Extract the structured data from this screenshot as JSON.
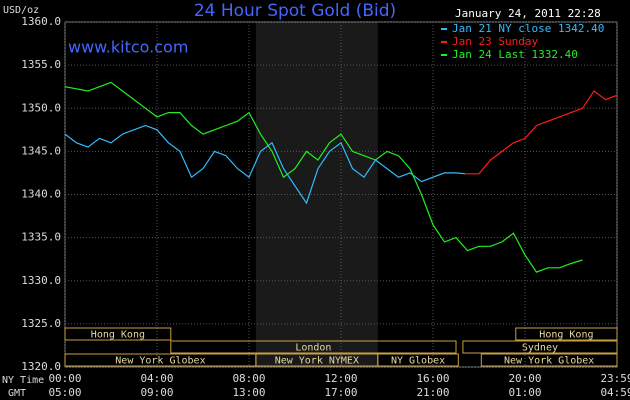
{
  "chart_data": {
    "type": "line",
    "title": "24 Hour Spot Gold (Bid)",
    "timestamp": "January 24, 2011 22:28",
    "watermark": "www.kitco.com",
    "y_label": "USD/oz",
    "x_row_labels": [
      "NY Time",
      "GMT"
    ],
    "xlim": [
      0,
      24
    ],
    "xticks": [
      {
        "value": 0,
        "label": "00:00"
      },
      {
        "value": 4,
        "label": "04:00"
      },
      {
        "value": 8,
        "label": "08:00"
      },
      {
        "value": 12,
        "label": "12:00"
      },
      {
        "value": 16,
        "label": "16:00"
      },
      {
        "value": 20,
        "label": "20:00"
      },
      {
        "value": 24,
        "label": "23:59"
      }
    ],
    "x2ticks": [
      {
        "value": 0,
        "label": "05:00"
      },
      {
        "value": 4,
        "label": "09:00"
      },
      {
        "value": 8,
        "label": "13:00"
      },
      {
        "value": 12,
        "label": "17:00"
      },
      {
        "value": 16,
        "label": "21:00"
      },
      {
        "value": 20,
        "label": "01:00"
      },
      {
        "value": 24,
        "label": "04:59"
      }
    ],
    "ylim": [
      1320,
      1360
    ],
    "yticks": [
      {
        "value": 1320,
        "label": "1320.0"
      },
      {
        "value": 1325,
        "label": "1325.0"
      },
      {
        "value": 1330,
        "label": "1330.0"
      },
      {
        "value": 1335,
        "label": "1335.0"
      },
      {
        "value": 1340,
        "label": "1340.0"
      },
      {
        "value": 1345,
        "label": "1345.0"
      },
      {
        "value": 1350,
        "label": "1350.0"
      },
      {
        "value": 1355,
        "label": "1355.0"
      },
      {
        "value": 1360,
        "label": "1360.0"
      }
    ],
    "grid": true,
    "sessions": [
      {
        "label": "Hong Kong",
        "start": 0,
        "end": 4.6,
        "row": 0
      },
      {
        "label": "Hong Kong",
        "start": 19.6,
        "end": 24,
        "row": 0
      },
      {
        "label": "London",
        "start": 4.6,
        "end": 17,
        "row": 1
      },
      {
        "label": "Sydney",
        "start": 17.3,
        "end": 24,
        "row": 1
      },
      {
        "label": "New York Globex",
        "start": 0,
        "end": 8.3,
        "row": 2
      },
      {
        "label": "New York NYMEX",
        "start": 8.3,
        "end": 13.6,
        "row": 2,
        "highlight": true
      },
      {
        "label": "NY Globex",
        "start": 13.6,
        "end": 17.1,
        "row": 2
      },
      {
        "label": "New York Globex",
        "start": 18.1,
        "end": 24,
        "row": 2
      }
    ],
    "series": [
      {
        "name": "Jan 21 NY close 1342.40",
        "color": "#33bbff",
        "x": [
          0,
          0.5,
          1,
          1.5,
          2,
          2.5,
          3,
          3.5,
          4,
          4.5,
          5,
          5.5,
          6,
          6.5,
          7,
          7.5,
          8,
          8.5,
          9,
          9.5,
          10,
          10.5,
          11,
          11.5,
          12,
          12.5,
          13,
          13.5,
          14,
          14.5,
          15,
          15.5,
          16,
          16.5,
          17,
          17.4
        ],
        "values": [
          1347,
          1346,
          1345.5,
          1346.5,
          1346,
          1347,
          1347.5,
          1348,
          1347.5,
          1346,
          1345,
          1342,
          1343,
          1345,
          1344.5,
          1343,
          1342,
          1345,
          1346,
          1343,
          1341,
          1339,
          1343,
          1345,
          1346,
          1343,
          1342,
          1344,
          1343,
          1342,
          1342.5,
          1341.5,
          1342,
          1342.5,
          1342.5,
          1342.4
        ]
      },
      {
        "name": "Jan 23 Sunday",
        "color": "#ff1a1a",
        "x": [
          17.4,
          18,
          18.5,
          19,
          19.5,
          20,
          20.5,
          21,
          21.5,
          22,
          22.5,
          23,
          23.5,
          24
        ],
        "values": [
          1342.4,
          1342.4,
          1344,
          1345,
          1346,
          1346.5,
          1348,
          1348.5,
          1349,
          1349.5,
          1350,
          1352,
          1351,
          1351.5
        ]
      },
      {
        "name": "Jan 24 Last 1332.40",
        "color": "#22ee22",
        "x": [
          0,
          1,
          1.5,
          2,
          2.5,
          3,
          3.5,
          4,
          4.5,
          5,
          5.5,
          6,
          6.5,
          7,
          7.5,
          8,
          8.5,
          9,
          9.5,
          10,
          10.5,
          11,
          11.5,
          12,
          12.5,
          13,
          13.5,
          14,
          14.5,
          15,
          15.5,
          16,
          16.5,
          17,
          17.5,
          18,
          18.5,
          19,
          19.5,
          20,
          20.5,
          21,
          21.5,
          22,
          22.5
        ],
        "values": [
          1352.5,
          1352,
          1352.5,
          1353,
          1352,
          1351,
          1350,
          1349,
          1349.5,
          1349.5,
          1348,
          1347,
          1347.5,
          1348,
          1348.5,
          1349.5,
          1347,
          1345,
          1342,
          1343,
          1345,
          1344,
          1346,
          1347,
          1345,
          1344.5,
          1344,
          1345,
          1344.5,
          1343,
          1340,
          1336.5,
          1334.5,
          1335,
          1333.5,
          1334,
          1334,
          1334.5,
          1335.5,
          1333,
          1331,
          1331.5,
          1331.5,
          1332,
          1332.4
        ]
      }
    ]
  }
}
